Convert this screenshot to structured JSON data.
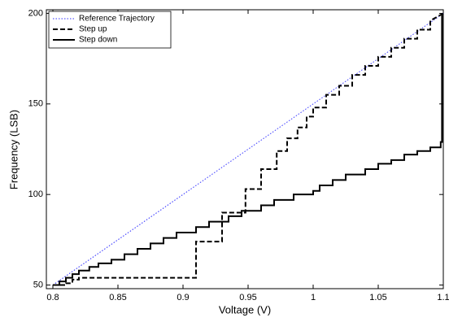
{
  "chart_data": {
    "type": "line",
    "xlabel": "Voltage (V)",
    "ylabel": "Frequency (LSB)",
    "xlim": [
      0.795,
      1.1
    ],
    "ylim": [
      48,
      202
    ],
    "xticks": [
      0.8,
      0.85,
      0.9,
      0.95,
      1,
      1.05,
      1.1
    ],
    "yticks": [
      50,
      100,
      150,
      200
    ],
    "legend": "upper-left",
    "series": [
      {
        "name": "Reference Trajectory",
        "color": "#3333ff",
        "linestyle": "dotted",
        "x": [
          0.8,
          1.1
        ],
        "values": [
          50,
          200
        ]
      },
      {
        "name": "Step up",
        "color": "#000000",
        "linestyle": "dashed",
        "x": [
          0.8,
          0.81,
          0.81,
          0.815,
          0.815,
          0.82,
          0.82,
          0.91,
          0.91,
          0.93,
          0.93,
          0.948,
          0.948,
          0.96,
          0.96,
          0.972,
          0.972,
          0.98,
          0.98,
          0.988,
          0.988,
          0.995,
          0.995,
          1.0,
          1.0,
          1.01,
          1.01,
          1.02,
          1.02,
          1.03,
          1.03,
          1.04,
          1.04,
          1.05,
          1.05,
          1.06,
          1.06,
          1.07,
          1.07,
          1.08,
          1.08,
          1.09,
          1.09,
          1.1
        ],
        "values": [
          50,
          50,
          51,
          51,
          53,
          53,
          54,
          54,
          74,
          74,
          90,
          90,
          103,
          103,
          114,
          114,
          124,
          124,
          131,
          131,
          137,
          137,
          143,
          143,
          148,
          148,
          155,
          155,
          160,
          160,
          166,
          166,
          171,
          171,
          176,
          176,
          181,
          181,
          186,
          186,
          191,
          191,
          196,
          200
        ]
      },
      {
        "name": "Step down",
        "color": "#000000",
        "linestyle": "solid",
        "x": [
          0.8,
          0.805,
          0.805,
          0.81,
          0.81,
          0.815,
          0.815,
          0.82,
          0.82,
          0.828,
          0.828,
          0.835,
          0.835,
          0.845,
          0.845,
          0.855,
          0.855,
          0.865,
          0.865,
          0.875,
          0.875,
          0.885,
          0.885,
          0.895,
          0.895,
          0.91,
          0.91,
          0.92,
          0.92,
          0.935,
          0.935,
          0.945,
          0.945,
          0.96,
          0.96,
          0.97,
          0.97,
          0.985,
          0.985,
          1.0,
          1.0,
          1.005,
          1.005,
          1.015,
          1.015,
          1.025,
          1.025,
          1.04,
          1.04,
          1.05,
          1.05,
          1.06,
          1.06,
          1.07,
          1.07,
          1.08,
          1.08,
          1.09,
          1.09,
          1.098,
          1.098,
          1.099,
          1.099
        ],
        "values": [
          50,
          50,
          52,
          52,
          54,
          54,
          56,
          56,
          58,
          58,
          60,
          60,
          62,
          62,
          64,
          64,
          67,
          67,
          70,
          70,
          73,
          73,
          76,
          76,
          79,
          79,
          82,
          82,
          85,
          85,
          88,
          88,
          91,
          91,
          94,
          94,
          97,
          97,
          100,
          100,
          102,
          102,
          105,
          105,
          108,
          108,
          111,
          111,
          114,
          114,
          117,
          117,
          119,
          119,
          122,
          122,
          124,
          124,
          126,
          126,
          129,
          129,
          200
        ]
      }
    ]
  }
}
